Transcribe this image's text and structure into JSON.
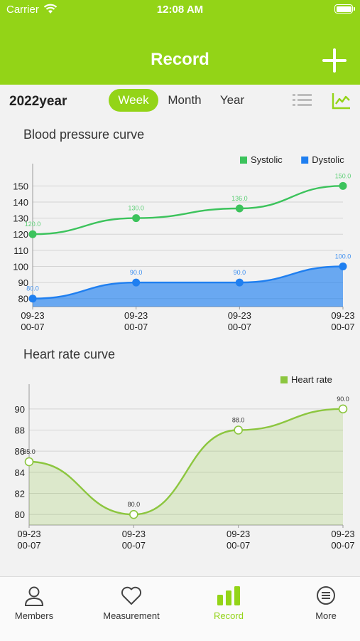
{
  "status_bar": {
    "carrier": "Carrier",
    "time": "12:08 AM"
  },
  "header": {
    "title": "Record"
  },
  "toolbar": {
    "year": "2022year",
    "segments": [
      "Week",
      "Month",
      "Year"
    ],
    "selected": "Week"
  },
  "sections": {
    "blood_pressure_title": "Blood pressure curve",
    "heart_rate_title": "Heart rate curve"
  },
  "colors": {
    "accent": "#93d417",
    "systolic": "#3cc35c",
    "dystolic": "#1f7ff0",
    "heart_rate": "#8cc63f"
  },
  "chart_data": [
    {
      "type": "line",
      "x": [
        "09-23\n00-07",
        "09-23\n00-07",
        "09-23\n00-07",
        "09-23\n00-07"
      ],
      "series": [
        {
          "name": "Systolic",
          "values": [
            120.0,
            130.0,
            136.0,
            150.0
          ],
          "labels": [
            "120.0",
            "130.0",
            "136.0",
            "150.0"
          ]
        },
        {
          "name": "Dystolic",
          "values": [
            80.0,
            90.0,
            90.0,
            100.0
          ],
          "labels": [
            "80.0",
            "90.0",
            "90.0",
            "100.0"
          ],
          "fill": true
        }
      ],
      "ylim": [
        75,
        155
      ],
      "yticks": [
        "80",
        "90",
        "100",
        "110",
        "120",
        "130",
        "140",
        "150"
      ],
      "grid": true,
      "legend": "top-right"
    },
    {
      "type": "area",
      "x": [
        "09-23\n00-07",
        "09-23\n00-07",
        "09-23\n00-07",
        "09-23\n00-07"
      ],
      "series": [
        {
          "name": "Heart rate",
          "values": [
            85.0,
            80.0,
            88.0,
            90.0
          ],
          "labels": [
            "85.0",
            "80.0",
            "88.0",
            "90.0"
          ]
        }
      ],
      "ylim": [
        79,
        91
      ],
      "yticks": [
        "80",
        "82",
        "84",
        "86",
        "88",
        "90"
      ],
      "grid": true,
      "legend": "top-right"
    }
  ],
  "tabbar": {
    "items": [
      {
        "label": "Members",
        "icon": "person-icon"
      },
      {
        "label": "Measurement",
        "icon": "heart-icon"
      },
      {
        "label": "Record",
        "icon": "bar-chart-icon"
      },
      {
        "label": "More",
        "icon": "menu-circle-icon"
      }
    ],
    "active": "Record"
  }
}
